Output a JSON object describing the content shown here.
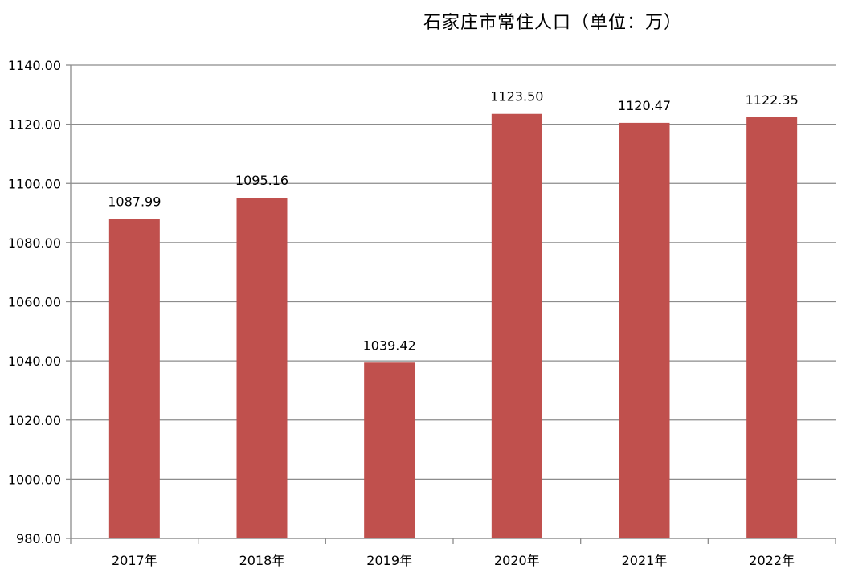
{
  "chart_data": {
    "type": "bar",
    "title": "石家庄市常住人口（单位：万）",
    "categories": [
      "2017年",
      "2018年",
      "2019年",
      "2020年",
      "2021年",
      "2022年"
    ],
    "values": [
      1087.99,
      1095.16,
      1039.42,
      1123.5,
      1120.47,
      1122.35
    ],
    "data_labels": [
      "1087.99",
      "1095.16",
      "1039.42",
      "1123.50",
      "1120.47",
      "1122.35"
    ],
    "ylim": [
      980,
      1140
    ],
    "yticks": [
      "980.00",
      "1000.00",
      "1020.00",
      "1040.00",
      "1060.00",
      "1080.00",
      "1100.00",
      "1120.00",
      "1140.00"
    ],
    "grid": true,
    "legend": "none",
    "bar_color": "#c0504d"
  }
}
